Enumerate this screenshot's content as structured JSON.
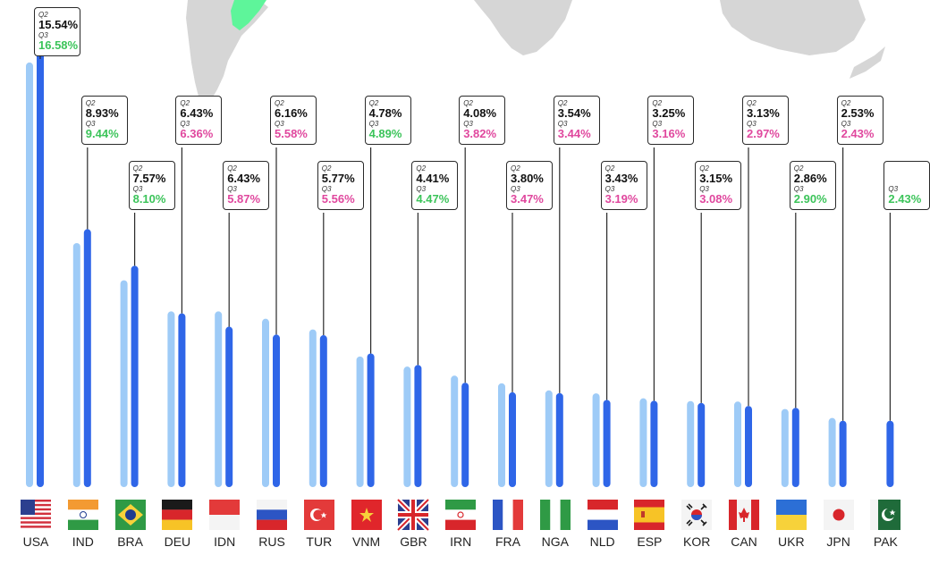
{
  "chart_data": {
    "type": "bar",
    "title": "",
    "xlabel": "",
    "ylabel": "",
    "ylim": [
      0,
      17
    ],
    "categories": [
      "USA",
      "IND",
      "BRA",
      "DEU",
      "IDN",
      "RUS",
      "TUR",
      "VNM",
      "GBR",
      "IRN",
      "FRA",
      "NGA",
      "NLD",
      "ESP",
      "KOR",
      "CAN",
      "UKR",
      "JPN",
      "PAK"
    ],
    "series": [
      {
        "name": "Q2",
        "color": "#9ecbf7",
        "values": [
          15.54,
          8.93,
          7.57,
          6.43,
          6.43,
          6.16,
          5.77,
          4.78,
          4.41,
          4.08,
          3.8,
          3.54,
          3.43,
          3.25,
          3.15,
          3.13,
          2.86,
          2.53,
          null
        ]
      },
      {
        "name": "Q3",
        "color": "#2f66e8",
        "values": [
          16.58,
          9.44,
          8.1,
          6.36,
          5.87,
          5.58,
          5.56,
          4.89,
          4.47,
          3.82,
          3.47,
          3.44,
          3.19,
          3.16,
          3.08,
          2.97,
          2.9,
          2.43,
          2.43
        ]
      }
    ],
    "labels": {
      "q2_tag": "Q2",
      "q3_tag": "Q3",
      "q2_text": [
        "15.54%",
        "8.93%",
        "7.57%",
        "6.43%",
        "6.43%",
        "6.16%",
        "5.77%",
        "4.78%",
        "4.41%",
        "4.08%",
        "3.80%",
        "3.54%",
        "3.43%",
        "3.25%",
        "3.15%",
        "3.13%",
        "2.86%",
        "2.53%",
        ""
      ],
      "q3_text": [
        "16.58%",
        "9.44%",
        "8.10%",
        "6.36%",
        "5.87%",
        "5.58%",
        "5.56%",
        "4.89%",
        "4.47%",
        "3.82%",
        "3.47%",
        "3.44%",
        "3.19%",
        "3.16%",
        "3.08%",
        "2.97%",
        "2.90%",
        "2.43%",
        "2.43%"
      ]
    },
    "change_colors": {
      "up": "#3cc45a",
      "down": "#e0489e"
    },
    "grid": false,
    "legend": "none"
  },
  "flags": [
    "us-flag-icon",
    "india-flag-icon",
    "brazil-flag-icon",
    "germany-flag-icon",
    "indonesia-flag-icon",
    "russia-flag-icon",
    "turkey-flag-icon",
    "vietnam-flag-icon",
    "uk-flag-icon",
    "iran-flag-icon",
    "france-flag-icon",
    "nigeria-flag-icon",
    "netherlands-flag-icon",
    "spain-flag-icon",
    "korea-flag-icon",
    "canada-flag-icon",
    "ukraine-flag-icon",
    "japan-flag-icon",
    "pakistan-flag-icon"
  ],
  "background": {
    "map_color": "#d6d6d6",
    "highlight_color": "#5ef59a"
  }
}
